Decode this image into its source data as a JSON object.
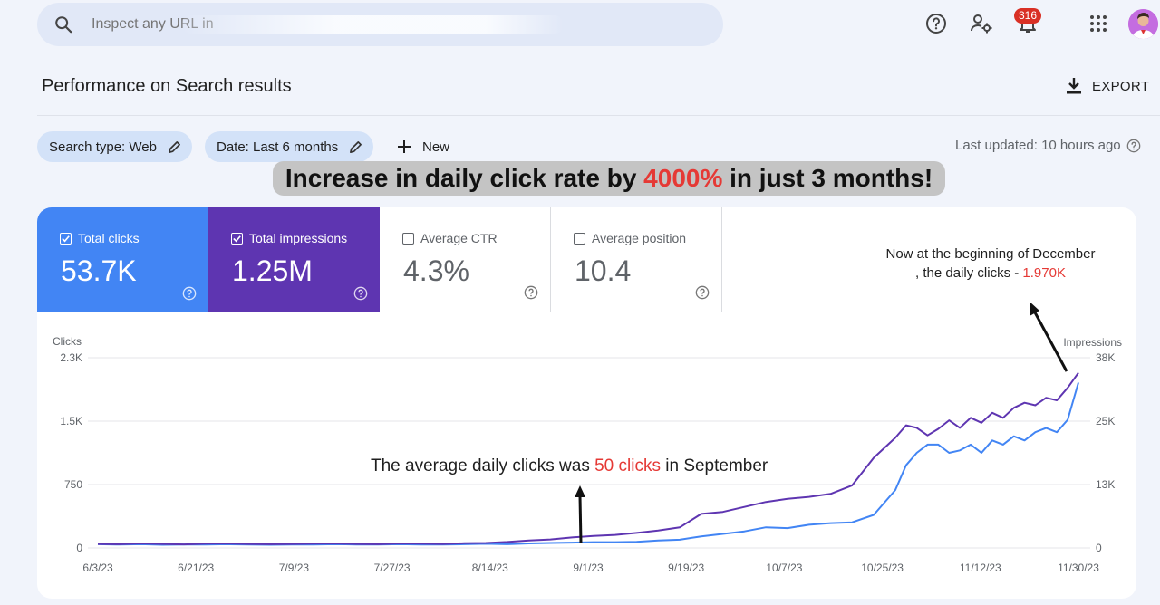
{
  "search": {
    "placeholder": "Inspect any URL in"
  },
  "header": {
    "notifications_count": "316"
  },
  "page": {
    "title": "Performance on Search results",
    "export_label": "EXPORT"
  },
  "filters": {
    "search_type": "Search type: Web",
    "date": "Date: Last 6 months",
    "new_label": "New",
    "last_updated": "Last updated: 10 hours ago"
  },
  "headline": {
    "before": "Increase in daily click rate by ",
    "highlight": "4000%",
    "after": " in just 3 months!"
  },
  "metrics": [
    {
      "label": "Total clicks",
      "value": "53.7K",
      "checked": true,
      "color": "#4285f4"
    },
    {
      "label": "Total impressions",
      "value": "1.25M",
      "checked": true,
      "color": "#5e35b1"
    },
    {
      "label": "Average CTR",
      "value": "4.3%",
      "checked": false
    },
    {
      "label": "Average position",
      "value": "10.4",
      "checked": false
    }
  ],
  "annotations": {
    "top_line1": "Now at the beginning of December",
    "top_line2_prefix": ", the daily clicks - ",
    "top_value": "1.970K",
    "mid_prefix": "The average daily clicks was ",
    "mid_value": "50 clicks",
    "mid_suffix": " in September"
  },
  "chart_data": {
    "type": "line",
    "left_axis_title": "Clicks",
    "right_axis_title": "Impressions",
    "left_ticks": [
      "0",
      "750",
      "1.5K",
      "2.3K"
    ],
    "right_ticks": [
      "0",
      "13K",
      "25K",
      "38K"
    ],
    "ylim_left": [
      0,
      2300
    ],
    "ylim_right": [
      0,
      38000
    ],
    "x_ticks": [
      "6/3/23",
      "6/21/23",
      "7/9/23",
      "7/27/23",
      "8/14/23",
      "9/1/23",
      "9/19/23",
      "10/7/23",
      "10/25/23",
      "11/12/23",
      "11/30/23"
    ],
    "x_range_days": [
      0,
      182
    ],
    "series": [
      {
        "name": "Clicks",
        "axis": "left",
        "color": "#4285f4",
        "x": [
          0,
          4,
          8,
          12,
          16,
          20,
          24,
          28,
          32,
          36,
          40,
          44,
          48,
          52,
          56,
          60,
          64,
          68,
          72,
          76,
          80,
          84,
          88,
          92,
          96,
          100,
          104,
          108,
          112,
          116,
          120,
          124,
          128,
          132,
          136,
          140,
          144,
          148,
          150,
          152,
          154,
          156,
          158,
          160,
          162,
          164,
          166,
          168,
          170,
          172,
          174,
          176,
          178,
          180,
          182
        ],
        "values": [
          45,
          40,
          45,
          38,
          42,
          40,
          45,
          40,
          38,
          42,
          40,
          45,
          42,
          40,
          45,
          42,
          40,
          45,
          50,
          45,
          55,
          60,
          65,
          70,
          70,
          75,
          90,
          100,
          140,
          170,
          200,
          250,
          240,
          280,
          300,
          310,
          400,
          700,
          1000,
          1150,
          1250,
          1250,
          1150,
          1180,
          1250,
          1150,
          1300,
          1250,
          1350,
          1300,
          1400,
          1450,
          1400,
          1550,
          2000
        ]
      },
      {
        "name": "Impressions",
        "axis": "right",
        "color": "#5e35b1",
        "x": [
          0,
          4,
          8,
          12,
          16,
          20,
          24,
          28,
          32,
          36,
          40,
          44,
          48,
          52,
          56,
          60,
          64,
          68,
          72,
          76,
          80,
          84,
          88,
          92,
          96,
          100,
          104,
          108,
          112,
          116,
          120,
          124,
          128,
          132,
          136,
          140,
          144,
          148,
          150,
          152,
          154,
          156,
          158,
          160,
          162,
          164,
          166,
          168,
          170,
          172,
          174,
          176,
          178,
          180,
          182
        ],
        "values": [
          800,
          750,
          900,
          800,
          700,
          850,
          900,
          800,
          750,
          800,
          850,
          900,
          800,
          750,
          900,
          850,
          800,
          950,
          1000,
          1200,
          1500,
          1700,
          2100,
          2400,
          2600,
          3000,
          3500,
          4100,
          6800,
          7200,
          8200,
          9200,
          9800,
          10200,
          10800,
          12500,
          18000,
          22000,
          24500,
          24000,
          22500,
          23800,
          25500,
          24000,
          26000,
          25000,
          27000,
          26000,
          28000,
          29000,
          28500,
          30000,
          29500,
          32000,
          35000
        ]
      }
    ]
  }
}
